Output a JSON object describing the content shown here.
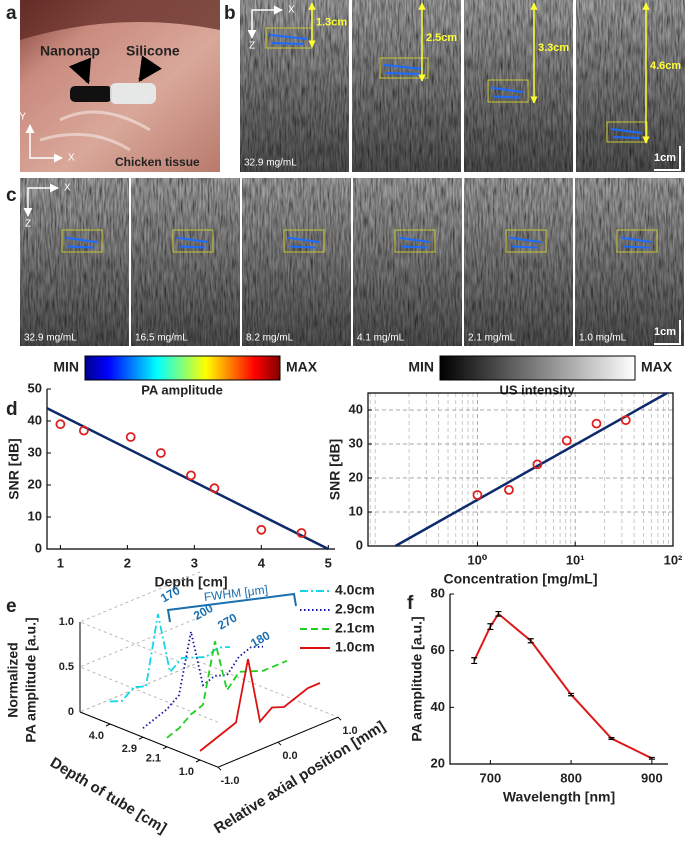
{
  "panel_labels": [
    "a",
    "b",
    "c",
    "d",
    "e",
    "f"
  ],
  "panel_a": {
    "tube_labels": [
      "Nanonap",
      "Silicone"
    ],
    "axes": [
      "Y",
      "X"
    ],
    "caption": "Chicken tissue"
  },
  "panel_b": {
    "axes": [
      "X",
      "Z"
    ],
    "depths": [
      "1.3cm",
      "2.5cm",
      "3.3cm",
      "4.6cm"
    ],
    "concentration": "32.9 mg/mL",
    "scale_bar": "1cm"
  },
  "panel_c": {
    "axes": [
      "X",
      "Z"
    ],
    "concentrations": [
      "32.9 mg/mL",
      "16.5 mg/mL",
      "8.2 mg/mL",
      "4.1 mg/mL",
      "2.1 mg/mL",
      "1.0 mg/mL"
    ],
    "scale_bar": "1cm"
  },
  "colorbars": [
    {
      "min": "MIN",
      "max": "MAX",
      "label": "PA amplitude"
    },
    {
      "min": "MIN",
      "max": "MAX",
      "label": "US intensity"
    }
  ],
  "chart_data": [
    {
      "type": "scatter",
      "xlabel": "Depth [cm]",
      "ylabel": "SNR [dB]",
      "xlim": [
        0.8,
        5.1
      ],
      "ylim": [
        0,
        50
      ],
      "xticks": [
        1,
        2,
        3,
        4,
        5
      ],
      "yticks": [
        0,
        10,
        20,
        30,
        40,
        50
      ],
      "grid": false,
      "box": false,
      "points": {
        "x": [
          1,
          1.35,
          2.05,
          2.5,
          2.95,
          3.3,
          4,
          4.6
        ],
        "values": [
          39,
          37,
          35,
          30,
          23,
          19,
          6,
          5
        ],
        "color": "#e02020"
      },
      "fit": {
        "x": [
          0.8,
          5.0
        ],
        "values": [
          44,
          0
        ],
        "color": "#0d2a6b"
      }
    },
    {
      "type": "scatter",
      "xlabel": "Concentration [mg/mL]",
      "ylabel": "SNR [dB]",
      "xscale": "log",
      "xlim": [
        0.076,
        100
      ],
      "ylim": [
        0,
        45
      ],
      "xticks": [
        {
          "value": 1,
          "label": "10⁰"
        },
        {
          "value": 10,
          "label": "10¹"
        },
        {
          "value": 100,
          "label": "10²"
        }
      ],
      "yticks": [
        0,
        10,
        20,
        30,
        40
      ],
      "grid": true,
      "box": true,
      "points": {
        "x": [
          1.0,
          2.1,
          4.1,
          8.2,
          16.5,
          32.9
        ],
        "values": [
          15,
          16.5,
          24,
          31,
          36,
          37
        ],
        "color": "#e02020"
      },
      "fit": {
        "x": [
          0.145,
          87
        ],
        "values": [
          0,
          45
        ],
        "color": "#0d2a6b"
      }
    },
    {
      "type": "line3d",
      "zlabel": [
        "Normalized",
        "PA amplitude [a.u.]"
      ],
      "depth_label": "Depth of tube [cm]",
      "xlabel": "Relative axial position [mm]",
      "fwhm_title": "FWHM [μm]",
      "x": [
        -1,
        -0.8,
        -0.6,
        -0.4,
        -0.2,
        0,
        0.2,
        0.4,
        0.6,
        0.8,
        1
      ],
      "xticks": [
        {
          "value": -1,
          "label": "-1.0"
        },
        {
          "value": 0,
          "label": "0.0"
        },
        {
          "value": 1,
          "label": "1.0"
        }
      ],
      "zticks": [
        0,
        0.5,
        {
          "value": 1,
          "label": "1.0"
        }
      ],
      "depth_ticks": [
        {
          "value": 4,
          "label": "4.0"
        },
        2.9,
        2.1,
        {
          "value": 1,
          "label": "1.0"
        }
      ],
      "series": [
        {
          "name": "4.0cm",
          "depth": 4.0,
          "color": "#10d8e8",
          "dash": "dashdot",
          "fwhm": 170,
          "values": [
            0.25,
            0.2,
            0.3,
            0.25,
            1.0,
            0.3,
            0.4,
            0.35,
            0.3,
            0.35,
            0.3
          ]
        },
        {
          "name": "2.9cm",
          "depth": 2.9,
          "color": "#1414a8",
          "dash": "dotted",
          "fwhm": 200,
          "values": [
            0.1,
            0.15,
            0.2,
            0.3,
            0.95,
            0.3,
            0.35,
            0.3,
            0.45,
            0.5,
            0.45
          ]
        },
        {
          "name": "2.1cm",
          "depth": 2.1,
          "color": "#20d020",
          "dash": "dashed",
          "fwhm": 270,
          "values": [
            0.1,
            0.15,
            0.25,
            0.3,
            0.95,
            0.35,
            0.5,
            0.45,
            0.4,
            0.4,
            0.4
          ]
        },
        {
          "name": "1.0cm",
          "depth": 1.0,
          "color": "#dd1111",
          "dash": "solid",
          "fwhm": 180,
          "values": [
            0.1,
            0.15,
            0.2,
            0.25,
            0.9,
            0.15,
            0.25,
            0.2,
            0.25,
            0.3,
            0.3
          ]
        }
      ]
    },
    {
      "type": "line",
      "xlabel": "Wavelength [nm]",
      "ylabel": "PA amplitude [a.u.]",
      "xlim": [
        650,
        920
      ],
      "ylim": [
        20,
        80
      ],
      "xticks": [
        700,
        800,
        900
      ],
      "yticks": [
        20,
        40,
        60,
        80
      ],
      "color": "#dd1a1a",
      "x": [
        680,
        700,
        710,
        750,
        800,
        850,
        900
      ],
      "values": [
        56.5,
        68.5,
        73,
        63.5,
        44.5,
        29,
        22
      ],
      "errors": [
        1.0,
        1.0,
        0.8,
        0.7,
        0.4,
        0.3,
        0.3
      ]
    }
  ]
}
